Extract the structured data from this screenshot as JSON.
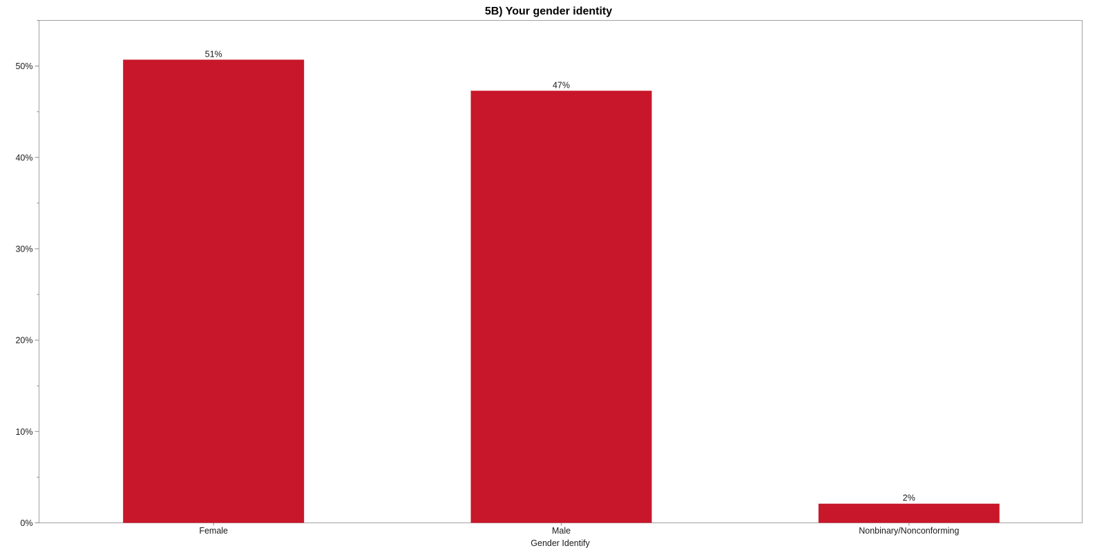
{
  "chart_data": {
    "type": "bar",
    "title": "5B) Your gender identity",
    "xlabel": "Gender Identify",
    "ylabel": "",
    "categories": [
      "Female",
      "Male",
      "Nonbinary/Nonconforming"
    ],
    "values": [
      50.7,
      47.3,
      2.1
    ],
    "data_labels": [
      "51%",
      "47%",
      "2%"
    ],
    "ylim": [
      0,
      55
    ],
    "yticks": [
      0,
      10,
      20,
      30,
      40,
      50
    ],
    "ytick_labels": [
      "0%",
      "10%",
      "20%",
      "30%",
      "40%",
      "50%"
    ],
    "minor_ticks": true,
    "grid": false,
    "legend": "none",
    "bar_color": "#c8172a"
  }
}
